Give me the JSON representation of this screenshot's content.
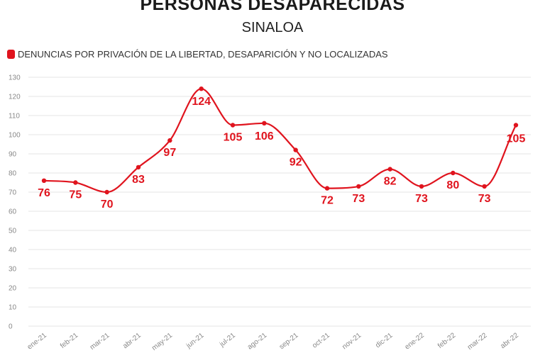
{
  "header": {
    "title": "PERSONAS DESAPARECIDAS",
    "subtitle": "SINALOA"
  },
  "colors": {
    "series": "#e0141e",
    "grid": "#e6e6e6",
    "tick": "#888888"
  },
  "chart_data": {
    "type": "line",
    "categories": [
      "ene-21",
      "feb-21",
      "mar-21",
      "abr-21",
      "may-21",
      "jun-21",
      "jul-21",
      "ago-21",
      "sep-21",
      "oct-21",
      "nov-21",
      "dic-21",
      "ene-22",
      "feb-22",
      "mar-22",
      "abr-22"
    ],
    "series": [
      {
        "name": "DENUNCIAS POR PRIVACIÓN DE LA LIBERTAD, DESAPARICIÓN Y NO LOCALIZADAS",
        "values": [
          76,
          75,
          70,
          83,
          97,
          124,
          105,
          106,
          92,
          72,
          73,
          82,
          73,
          80,
          73,
          105
        ]
      }
    ],
    "title": "PERSONAS DESAPARECIDAS",
    "subtitle": "SINALOA",
    "ylim": [
      0,
      130
    ],
    "yticks": [
      0,
      10,
      20,
      30,
      40,
      50,
      60,
      70,
      80,
      90,
      100,
      110,
      120,
      130
    ],
    "grid": true,
    "legend_position": "top-left",
    "smooth": true,
    "data_labels": true
  }
}
